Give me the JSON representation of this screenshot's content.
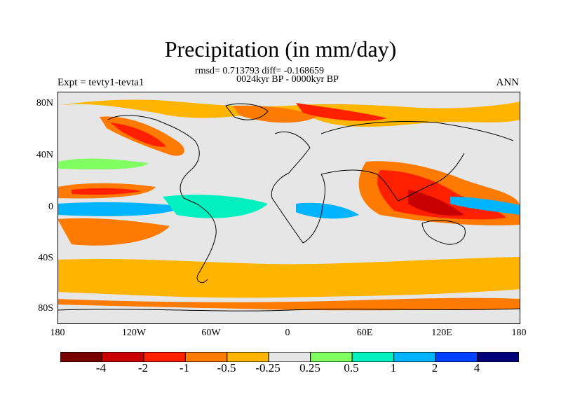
{
  "title": "Precipitation (in mm/day)",
  "stats": "rmsd= 0.713793 diff= -0.168659",
  "period": "0024kyr BP - 0000kyr BP",
  "experiment": "Expt = tevty1-tevta1",
  "season": "ANN",
  "axes": {
    "y_ticks": [
      "80N",
      "40N",
      "0",
      "40S",
      "80S"
    ],
    "x_ticks": [
      "180",
      "120W",
      "60W",
      "0",
      "60E",
      "120E",
      "180"
    ]
  },
  "colorbar": {
    "colors": [
      "#7a0000",
      "#c80000",
      "#ff2000",
      "#ff7a00",
      "#ffb400",
      "#e6e6e6",
      "#80ff60",
      "#00f0c0",
      "#00b4ff",
      "#0040ff",
      "#000078"
    ],
    "labels": [
      "-4",
      "-2",
      "-1",
      "-0.5",
      "-0.25",
      "0.25",
      "0.5",
      "1",
      "2",
      "4"
    ]
  }
}
